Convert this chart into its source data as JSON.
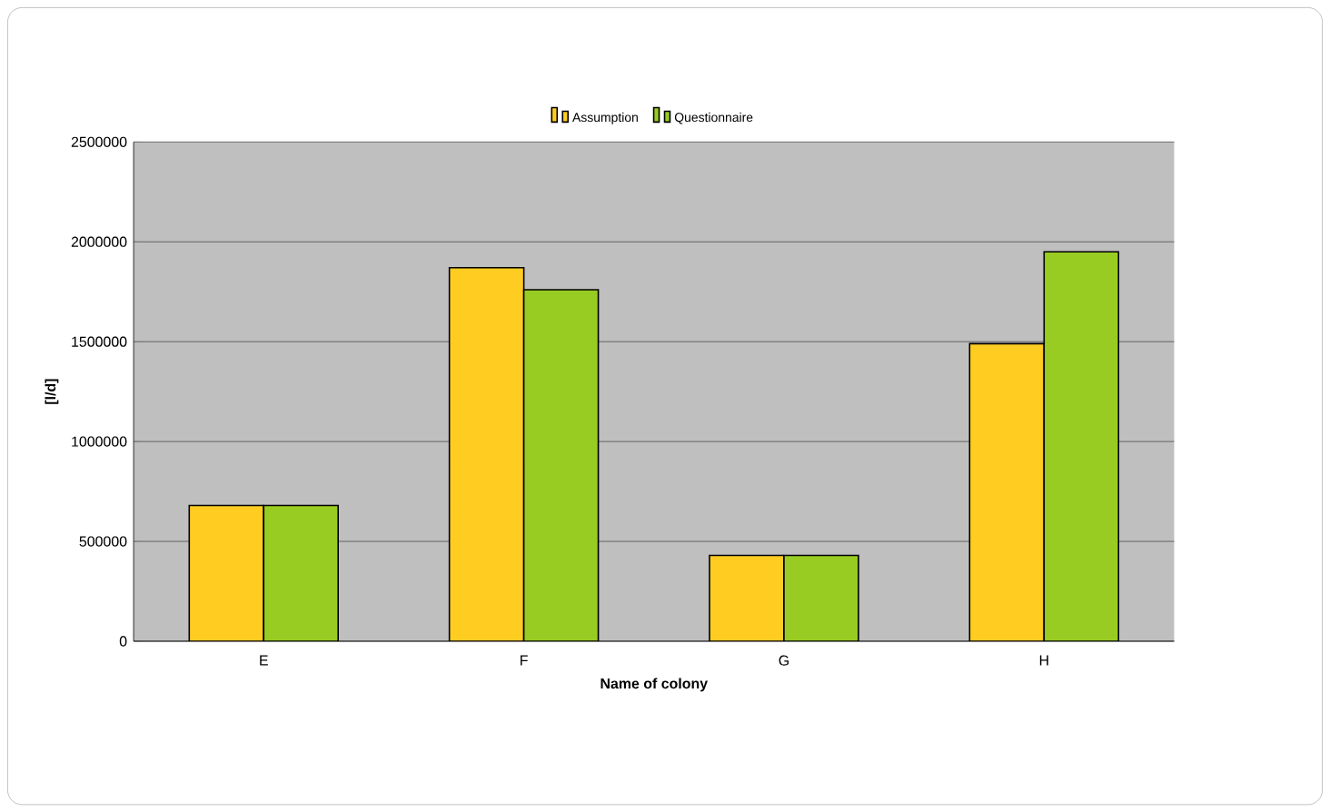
{
  "chart_data": {
    "type": "bar",
    "xlabel": "Name of colony",
    "ylabel": "[l/d]",
    "categories": [
      "E",
      "F",
      "G",
      "H"
    ],
    "series": [
      {
        "name": "Assumption",
        "color": "#ffcc22",
        "values": [
          680000,
          1870000,
          430000,
          1490000
        ]
      },
      {
        "name": "Questionnaire",
        "color": "#99cc22",
        "values": [
          680000,
          1760000,
          430000,
          1950000
        ]
      }
    ],
    "ylim": [
      0,
      2500000
    ],
    "yticks": [
      0,
      500000,
      1000000,
      1500000,
      2000000,
      2500000
    ],
    "grid": "y",
    "legend": "top"
  }
}
